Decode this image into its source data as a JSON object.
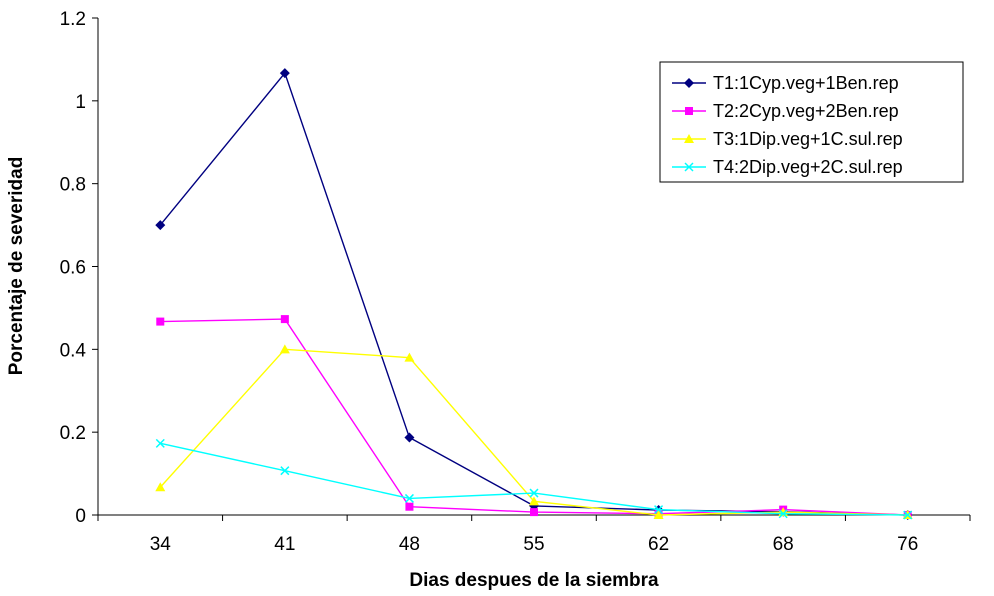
{
  "chart_data": {
    "type": "line",
    "title": "",
    "xlabel": "Dias despues de la siembra",
    "ylabel": "Porcentaje de severidad",
    "categories": [
      "34",
      "41",
      "48",
      "55",
      "62",
      "68",
      "76"
    ],
    "ylim": [
      0,
      1.2
    ],
    "yticks": [
      "0",
      "0.2",
      "0.4",
      "0.6",
      "0.8",
      "1",
      "1.2"
    ],
    "grid": false,
    "legend_position": "top-right",
    "series": [
      {
        "name": "T1:1Cyp.veg+1Ben.rep",
        "color": "#000080",
        "marker": "diamond",
        "values": [
          0.7,
          1.067,
          0.187,
          0.022,
          0.012,
          0.008,
          0.0
        ]
      },
      {
        "name": "T2:2Cyp.veg+2Ben.rep",
        "color": "#ff00ff",
        "marker": "square",
        "values": [
          0.467,
          0.473,
          0.02,
          0.007,
          0.003,
          0.013,
          0.0
        ]
      },
      {
        "name": "T3:1Dip.veg+1C.sul.rep",
        "color": "#ffff00",
        "marker": "triangle",
        "values": [
          0.067,
          0.4,
          0.38,
          0.033,
          0.0,
          0.007,
          0.0
        ]
      },
      {
        "name": "T4:2Dip.veg+2C.sul.rep",
        "color": "#00ffff",
        "marker": "x",
        "values": [
          0.173,
          0.107,
          0.04,
          0.053,
          0.013,
          0.003,
          0.0
        ]
      }
    ]
  }
}
